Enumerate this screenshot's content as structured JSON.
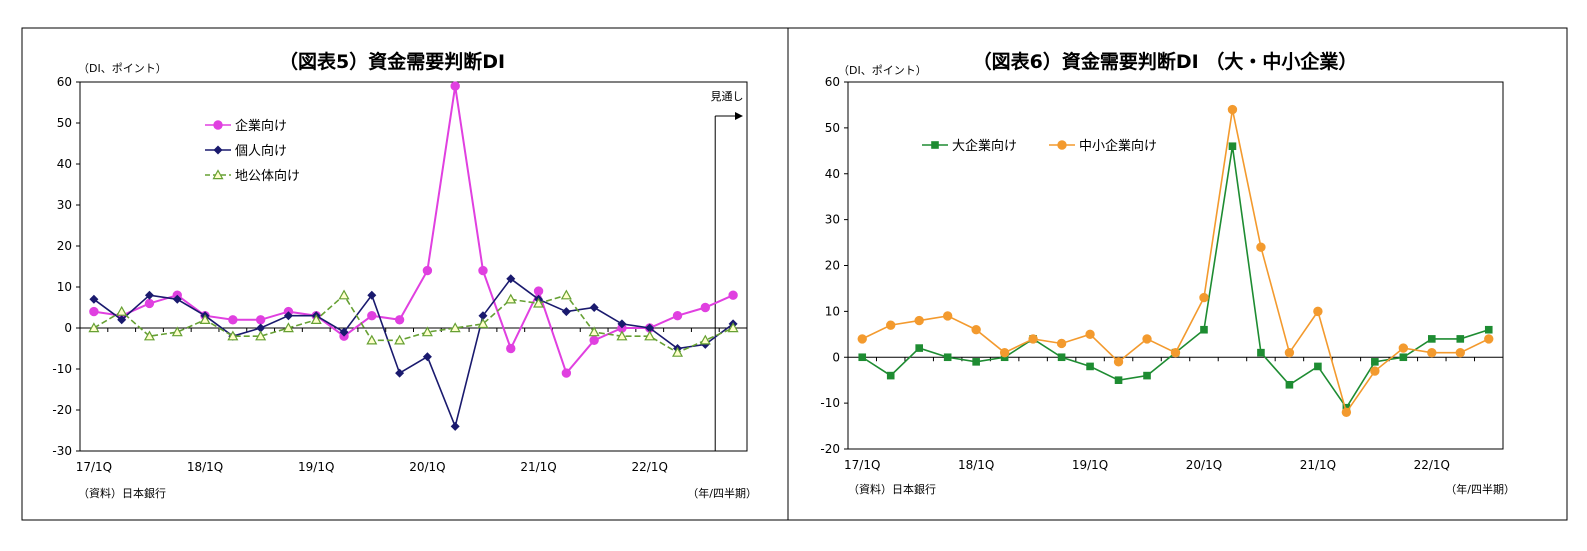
{
  "chart_data": [
    {
      "type": "line",
      "title": "（図表5）資金需要判断DI",
      "unit_label": "（DI、ポイント）",
      "source": "（資料）日本銀行",
      "x_unit_label": "（年/四半期）",
      "forecast_label": "見通し",
      "x_tick_labels": [
        "17/1Q",
        "18/1Q",
        "19/1Q",
        "20/1Q",
        "21/1Q",
        "22/1Q"
      ],
      "x_count": 24,
      "ylim": [
        -30,
        60
      ],
      "y_ticks": [
        60,
        50,
        40,
        30,
        20,
        10,
        0,
        -10,
        -20,
        -30
      ],
      "forecast_index": 22.5,
      "series": [
        {
          "name": "企業向け",
          "color": "#E040E0",
          "marker": "circle",
          "dashed": false,
          "values": [
            4,
            3,
            6,
            8,
            3,
            2,
            2,
            4,
            3,
            -2,
            3,
            2,
            14,
            59,
            14,
            -5,
            9,
            -11,
            -3,
            0,
            0,
            3,
            5,
            8
          ]
        },
        {
          "name": "個人向け",
          "color": "#1A1A6E",
          "marker": "diamond",
          "dashed": false,
          "values": [
            7,
            2,
            8,
            7,
            3,
            -2,
            0,
            3,
            3,
            -1,
            8,
            -11,
            -7,
            -24,
            3,
            12,
            7,
            4,
            5,
            1,
            0,
            -5,
            -4,
            1
          ]
        },
        {
          "name": "地公体向け",
          "color": "#66A033",
          "marker": "triangle",
          "dashed": true,
          "values": [
            0,
            4,
            -2,
            -1,
            2,
            -2,
            -2,
            0,
            2,
            8,
            -3,
            -3,
            -1,
            0,
            1,
            7,
            6,
            8,
            -1,
            -2,
            -2,
            -6,
            -3,
            0
          ]
        }
      ]
    },
    {
      "type": "line",
      "title": "（図表6）資金需要判断DI （大・中小企業）",
      "unit_label": "（DI、ポイント）",
      "source": "（資料）日本銀行",
      "x_unit_label": "（年/四半期）",
      "x_tick_labels": [
        "17/1Q",
        "18/1Q",
        "19/1Q",
        "20/1Q",
        "21/1Q",
        "22/1Q"
      ],
      "x_count": 23,
      "ylim": [
        -20,
        60
      ],
      "y_ticks": [
        60,
        50,
        40,
        30,
        20,
        10,
        0,
        -10,
        -20
      ],
      "series": [
        {
          "name": "大企業向け",
          "color": "#1E8C32",
          "marker": "square",
          "dashed": false,
          "values": [
            0,
            -4,
            2,
            0,
            -1,
            0,
            4,
            0,
            -2,
            -5,
            -4,
            1,
            6,
            46,
            1,
            -6,
            -2,
            -11,
            -1,
            0,
            4,
            4,
            6
          ]
        },
        {
          "name": "中小企業向け",
          "color": "#F39A2E",
          "marker": "circle",
          "dashed": false,
          "values": [
            4,
            7,
            8,
            9,
            6,
            1,
            4,
            3,
            5,
            -1,
            4,
            1,
            13,
            54,
            24,
            1,
            10,
            -12,
            -3,
            2,
            1,
            1,
            4
          ]
        }
      ]
    }
  ]
}
